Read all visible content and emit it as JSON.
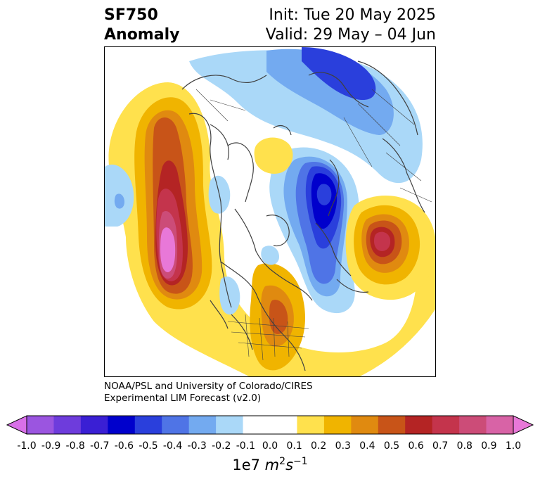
{
  "title": {
    "left_line1": "SF750",
    "left_line2": "Anomaly",
    "right_line1": "Init: Tue 20 May 2025",
    "right_line2": "Valid: 29 May – 04 Jun"
  },
  "credit": {
    "line1": "NOAA/PSL and University of Colorado/CIRES",
    "line2": "Experimental LIM Forecast (v2.0)"
  },
  "colorbar": {
    "ticks": [
      "-1.0",
      "-0.9",
      "-0.8",
      "-0.7",
      "-0.6",
      "-0.5",
      "-0.4",
      "-0.3",
      "-0.2",
      "-0.1",
      "0.0",
      "0.1",
      "0.2",
      "0.3",
      "0.4",
      "0.5",
      "0.6",
      "0.7",
      "0.8",
      "0.9",
      "1.0"
    ],
    "colors": [
      "#9b55e0",
      "#6e3cdc",
      "#3a1fd4",
      "#0000cc",
      "#2a3fdc",
      "#4f74e6",
      "#73aaf0",
      "#aad8f8",
      "#ffffff",
      "#ffffff",
      "#ffe14d",
      "#f0b400",
      "#e08a10",
      "#c85418",
      "#b42424",
      "#c4344c",
      "#cc4c78",
      "#d863a6"
    ],
    "extend_low_color": "#d870e8",
    "extend_high_color": "#e878d8",
    "units_base": "1e7 ",
    "units_m": "m",
    "units_m_exp": "2",
    "units_s": "s",
    "units_s_exp": "−1"
  },
  "map": {
    "projection": "north-polar-stereographic",
    "colors": {
      "lavender": "#e878d8",
      "pink": "#d863a6",
      "rose": "#cc4c78",
      "crimson": "#c4344c",
      "red": "#b42424",
      "orange_red": "#c85418",
      "dark_orange": "#e08a10",
      "orange": "#f0b400",
      "yellow": "#ffe14d",
      "pale_blue": "#aad8f8",
      "light_blue": "#73aaf0",
      "mid_blue": "#4f74e6",
      "blue": "#2a3fdc",
      "deep_blue": "#0000cc",
      "coast": "#404040"
    }
  }
}
